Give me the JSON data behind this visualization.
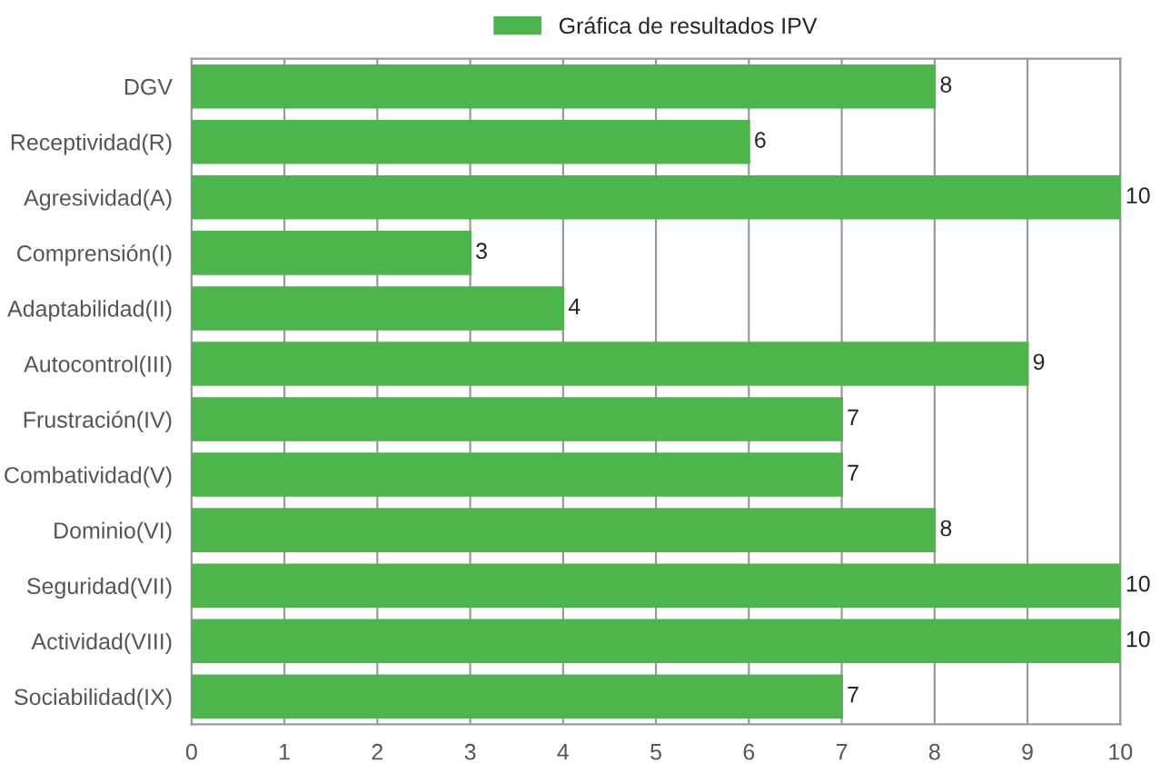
{
  "chart_data": {
    "type": "bar",
    "orientation": "horizontal",
    "categories": [
      "DGV",
      "Receptividad(R)",
      "Agresividad(A)",
      "Comprensión(I)",
      "Adaptabilidad(II)",
      "Autocontrol(III)",
      "Frustración(IV)",
      "Combatividad(V)",
      "Dominio(VI)",
      "Seguridad(VII)",
      "Actividad(VIII)",
      "Sociabilidad(IX)"
    ],
    "series": [
      {
        "name": "Gráfica de resultados IPV",
        "color": "#4cb54c",
        "values": [
          8,
          6,
          10,
          3,
          4,
          9,
          7,
          7,
          8,
          10,
          10,
          7
        ]
      }
    ],
    "xlim": [
      0,
      10
    ],
    "xticks": [
      0,
      1,
      2,
      3,
      4,
      5,
      6,
      7,
      8,
      9,
      10
    ],
    "grid": "x",
    "legend": "top",
    "data_labels": true
  }
}
